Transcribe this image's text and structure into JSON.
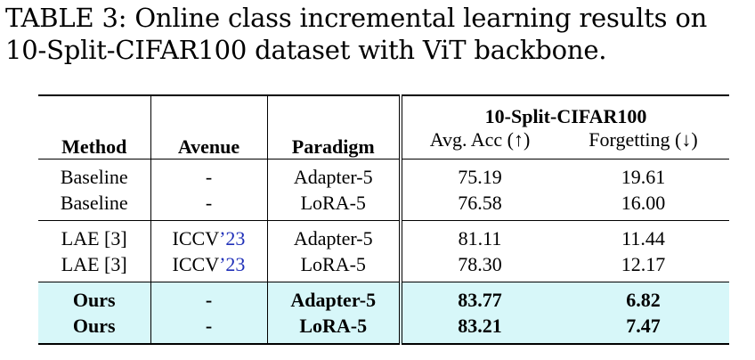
{
  "caption": {
    "prefix": "TABLE 3:",
    "text": "Online class incremental learning results on 10-Split-CIFAR100 dataset with ViT backbone."
  },
  "table": {
    "headers": {
      "method": "Method",
      "avenue": "Avenue",
      "paradigm": "Paradigm",
      "dataset": "10-Split-CIFAR100",
      "avg_acc": "Avg. Acc (↑)",
      "forgetting": "Forgetting (↓)"
    },
    "groups": [
      {
        "rows": [
          {
            "method": "Baseline",
            "avenue": "-",
            "avenue_year": "",
            "paradigm": "Adapter-5",
            "avg_acc": "75.19",
            "forgetting": "19.61"
          },
          {
            "method": "Baseline",
            "avenue": "-",
            "avenue_year": "",
            "paradigm": "LoRA-5",
            "avg_acc": "76.58",
            "forgetting": "16.00"
          }
        ]
      },
      {
        "rows": [
          {
            "method": "LAE [3]",
            "avenue": "ICCV",
            "avenue_year": "’23",
            "paradigm": "Adapter-5",
            "avg_acc": "81.11",
            "forgetting": "11.44"
          },
          {
            "method": "LAE [3]",
            "avenue": "ICCV",
            "avenue_year": "’23",
            "paradigm": "LoRA-5",
            "avg_acc": "78.30",
            "forgetting": "12.17"
          }
        ]
      },
      {
        "highlight": "#d7f7f9",
        "rows": [
          {
            "method": "Ours",
            "avenue": "-",
            "avenue_year": "",
            "paradigm": "Adapter-5",
            "avg_acc": "83.77",
            "forgetting": "6.82"
          },
          {
            "method": "Ours",
            "avenue": "-",
            "avenue_year": "",
            "paradigm": "LoRA-5",
            "avg_acc": "83.21",
            "forgetting": "7.47"
          }
        ]
      }
    ]
  }
}
